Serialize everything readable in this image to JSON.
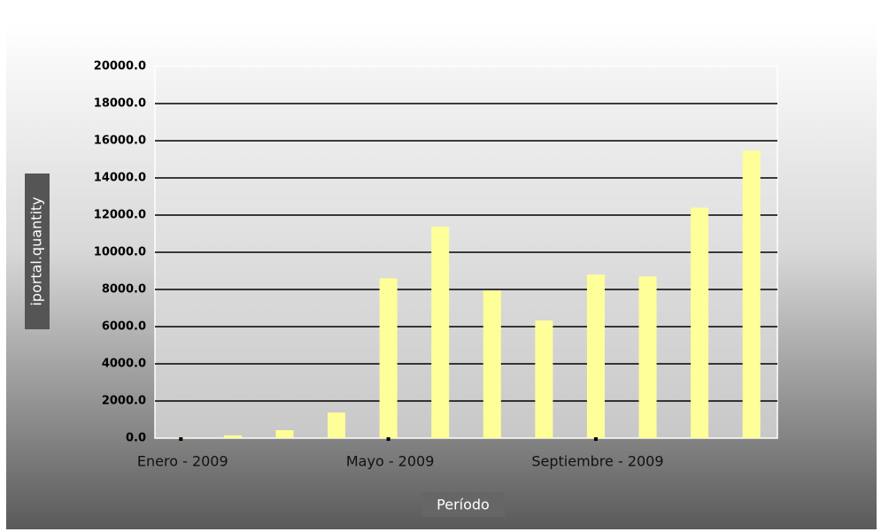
{
  "chart_data": {
    "type": "bar",
    "x_label": "Período",
    "y_label": "iportal.quantity",
    "categories": [
      "Enero - 2009",
      null,
      null,
      null,
      "Mayo - 2009",
      null,
      null,
      null,
      "Septiembre - 2009",
      null,
      null,
      null
    ],
    "values": [
      20,
      150,
      430,
      1380,
      8600,
      11380,
      7950,
      6330,
      8800,
      8700,
      12400,
      15470
    ],
    "color": "#ffff99",
    "ylim": [
      0,
      20000
    ],
    "yticks": [
      {
        "value": 0,
        "label": "0.0"
      },
      {
        "value": 2000,
        "label": "2000.0"
      },
      {
        "value": 4000,
        "label": "4000.0"
      },
      {
        "value": 6000,
        "label": "6000.0"
      },
      {
        "value": 8000,
        "label": "8000.0"
      },
      {
        "value": 10000,
        "label": "10000.0"
      },
      {
        "value": 12000,
        "label": "12000.0"
      },
      {
        "value": 14000,
        "label": "14000.0"
      },
      {
        "value": 16000,
        "label": "16000.0"
      },
      {
        "value": 18000,
        "label": "18000.0"
      },
      {
        "value": 20000,
        "label": "20000.0"
      }
    ],
    "grid": true
  }
}
